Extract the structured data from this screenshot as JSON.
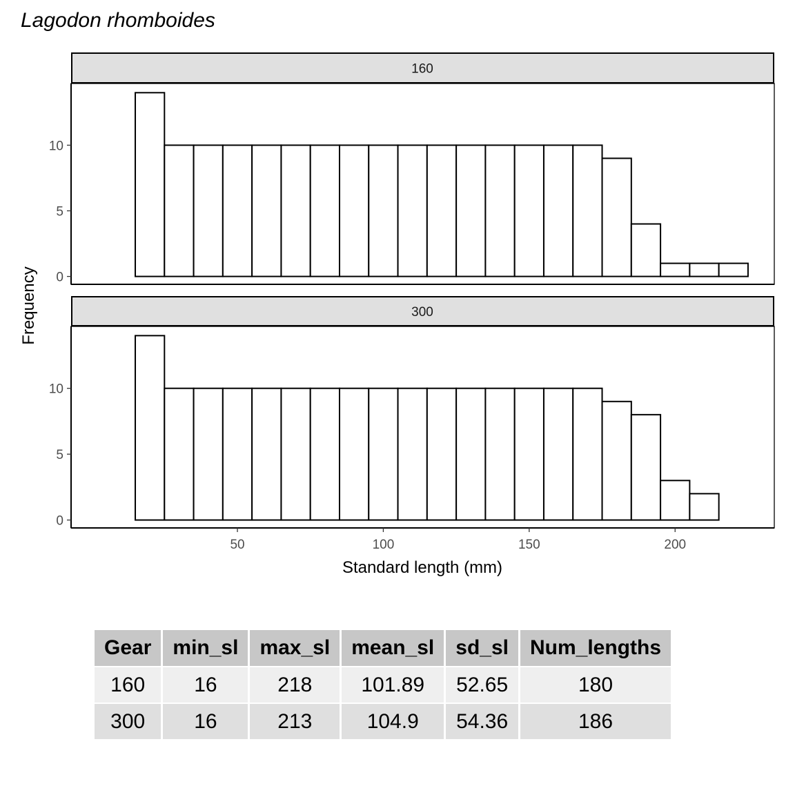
{
  "chart_data": {
    "type": "bar",
    "title": "Lagodon rhomboides",
    "xlabel": "Standard length (mm)",
    "ylabel": "Frequency",
    "x_ticks": [
      50,
      100,
      150,
      200
    ],
    "xlim": [
      -7,
      234
    ],
    "y_ticks": [
      0,
      5,
      10
    ],
    "ylim": [
      -0.6,
      14.7
    ],
    "bin_width": 10,
    "bin_starts": [
      15,
      25,
      35,
      45,
      55,
      65,
      75,
      85,
      95,
      105,
      115,
      125,
      135,
      145,
      155,
      165,
      175,
      185,
      195,
      205,
      215
    ],
    "fill": "#ffffff",
    "stroke": "#000000",
    "strip_fill": "#e0e0e0",
    "grid": false,
    "legend": "none",
    "panels": [
      {
        "label": "160",
        "values": [
          14,
          10,
          10,
          10,
          10,
          10,
          10,
          10,
          10,
          10,
          10,
          10,
          10,
          10,
          10,
          10,
          9,
          4,
          1,
          1,
          1
        ]
      },
      {
        "label": "300",
        "values": [
          14,
          10,
          10,
          10,
          10,
          10,
          10,
          10,
          10,
          10,
          10,
          10,
          10,
          10,
          10,
          10,
          9,
          8,
          3,
          2,
          0
        ]
      }
    ]
  },
  "table": {
    "headers": [
      "Gear",
      "min_sl",
      "max_sl",
      "mean_sl",
      "sd_sl",
      "Num_lengths"
    ],
    "rows": [
      [
        "160",
        "16",
        "218",
        "101.89",
        "52.65",
        "180"
      ],
      [
        "300",
        "16",
        "213",
        "104.9",
        "54.36",
        "186"
      ]
    ]
  }
}
